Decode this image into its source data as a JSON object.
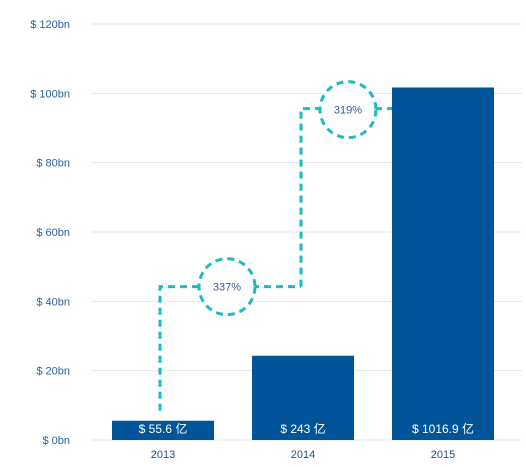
{
  "chart_data": {
    "type": "bar",
    "categories": [
      "2013",
      "2014",
      "2015"
    ],
    "values": [
      5.56,
      24.3,
      101.69
    ],
    "value_labels": [
      "$ 55.6 亿",
      "$ 243 亿",
      "$ 1016.9 亿"
    ],
    "y_ticks": [
      0,
      20,
      40,
      60,
      80,
      100,
      120
    ],
    "y_tick_labels": [
      "$ 0bn",
      "$ 20bn",
      "$ 40bn",
      "$ 60bn",
      "$ 80bn",
      "$ 100bn",
      "$ 120bn"
    ],
    "ylim": [
      0,
      120
    ],
    "grid": true,
    "growth_annotations": [
      {
        "from": "2013",
        "to": "2014",
        "label": "337%"
      },
      {
        "from": "2014",
        "to": "2015",
        "label": "319%"
      }
    ],
    "colors": {
      "bar": "#00549a",
      "connector": "#1bbcc0",
      "grid": "#e6e6e6",
      "axis_text": "#2a5f9a"
    }
  }
}
